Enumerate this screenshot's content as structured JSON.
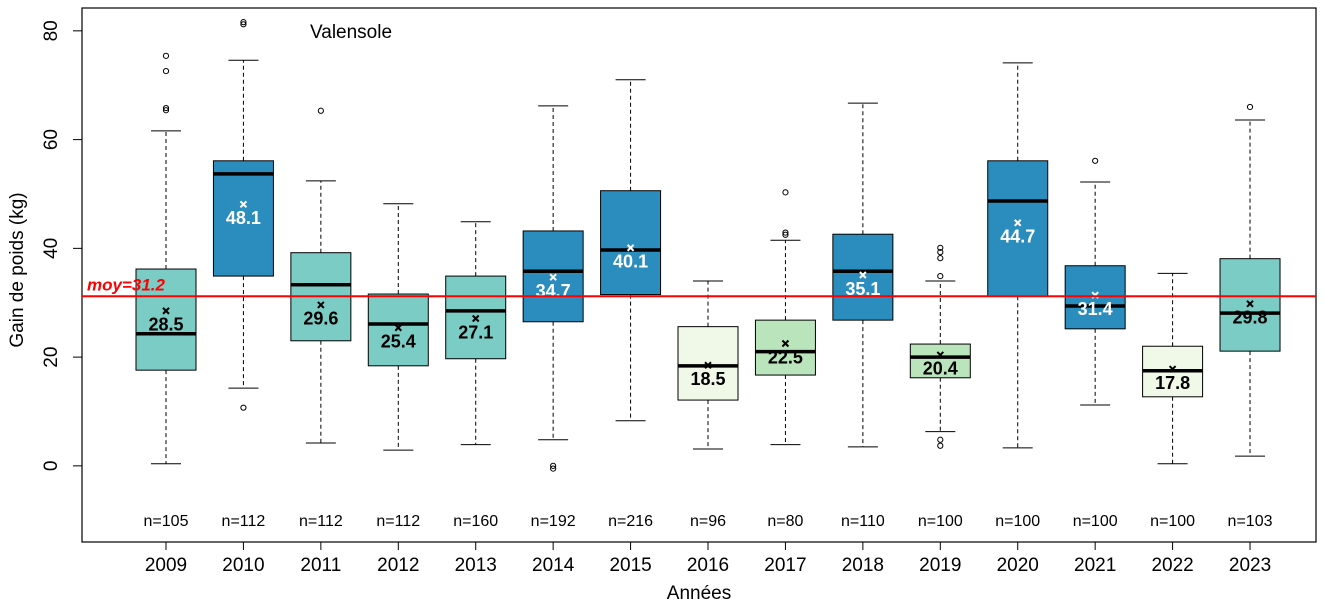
{
  "chart_data": {
    "type": "boxplot",
    "title": "Valensole",
    "xlabel": "Années",
    "ylabel": "Gain de poids (kg)",
    "ylim": [
      -14,
      84.2
    ],
    "yticks": [
      0,
      20,
      40,
      60,
      80
    ],
    "categories": [
      "2009",
      "2010",
      "2011",
      "2012",
      "2013",
      "2014",
      "2015",
      "2016",
      "2017",
      "2018",
      "2019",
      "2020",
      "2021",
      "2022",
      "2023"
    ],
    "reference_line": {
      "value": 31.2,
      "label": "moy=31.2",
      "color": "#ff0000"
    },
    "boxes": [
      {
        "whislo": 0.4,
        "q1": 17.6,
        "med": 24.3,
        "q3": 36.2,
        "whishi": 61.6,
        "mean": 28.5,
        "fliers": [
          75.4,
          72.6,
          65.8,
          65.4
        ],
        "n": "n=105",
        "color": "#7bccc4",
        "label_color": "#000000"
      },
      {
        "whislo": 14.3,
        "q1": 34.9,
        "med": 53.7,
        "q3": 56.1,
        "whishi": 74.6,
        "mean": 48.1,
        "fliers": [
          81.6,
          81.2,
          10.7
        ],
        "n": "n=112",
        "color": "#2b8cbe",
        "label_color": "#ffffff"
      },
      {
        "whislo": 4.2,
        "q1": 23.0,
        "med": 33.3,
        "q3": 39.2,
        "whishi": 52.4,
        "mean": 29.6,
        "fliers": [
          65.3
        ],
        "n": "n=112",
        "color": "#7bccc4",
        "label_color": "#000000"
      },
      {
        "whislo": 2.9,
        "q1": 18.4,
        "med": 26.1,
        "q3": 31.6,
        "whishi": 48.2,
        "mean": 25.4,
        "fliers": [],
        "n": "n=112",
        "color": "#7bccc4",
        "label_color": "#000000"
      },
      {
        "whislo": 3.9,
        "q1": 19.7,
        "med": 28.5,
        "q3": 34.9,
        "whishi": 44.9,
        "mean": 27.1,
        "fliers": [],
        "n": "n=160",
        "color": "#7bccc4",
        "label_color": "#000000"
      },
      {
        "whislo": 4.8,
        "q1": 26.5,
        "med": 35.8,
        "q3": 43.2,
        "whishi": 66.2,
        "mean": 34.7,
        "fliers": [
          0,
          -0.5
        ],
        "n": "n=192",
        "color": "#2b8cbe",
        "label_color": "#ffffff"
      },
      {
        "whislo": 8.3,
        "q1": 31.5,
        "med": 39.7,
        "q3": 50.6,
        "whishi": 71.0,
        "mean": 40.1,
        "fliers": [],
        "n": "n=216",
        "color": "#2b8cbe",
        "label_color": "#ffffff"
      },
      {
        "whislo": 3.1,
        "q1": 12.1,
        "med": 18.4,
        "q3": 25.6,
        "whishi": 34.0,
        "mean": 18.5,
        "fliers": [],
        "n": "n=96",
        "color": "#f0f9e8",
        "label_color": "#000000"
      },
      {
        "whislo": 3.9,
        "q1": 16.7,
        "med": 21.0,
        "q3": 26.8,
        "whishi": 41.5,
        "mean": 22.5,
        "fliers": [
          50.3,
          42.9,
          42.5
        ],
        "n": "n=80",
        "color": "#bae4bc",
        "label_color": "#000000"
      },
      {
        "whislo": 3.5,
        "q1": 26.8,
        "med": 35.8,
        "q3": 42.6,
        "whishi": 66.7,
        "mean": 35.1,
        "fliers": [],
        "n": "n=110",
        "color": "#2b8cbe",
        "label_color": "#ffffff"
      },
      {
        "whislo": 6.3,
        "q1": 16.2,
        "med": 20.0,
        "q3": 22.4,
        "whishi": 34.0,
        "mean": 20.4,
        "fliers": [
          40.1,
          39.3,
          38.2,
          34.9,
          4.8,
          3.7
        ],
        "n": "n=100",
        "color": "#bae4bc",
        "label_color": "#000000"
      },
      {
        "whislo": 3.3,
        "q1": 31.2,
        "med": 48.7,
        "q3": 56.1,
        "whishi": 74.1,
        "mean": 44.7,
        "fliers": [],
        "n": "n=100",
        "color": "#2b8cbe",
        "label_color": "#ffffff"
      },
      {
        "whislo": 11.2,
        "q1": 25.2,
        "med": 29.4,
        "q3": 36.8,
        "whishi": 52.2,
        "mean": 31.4,
        "fliers": [
          56.1
        ],
        "n": "n=100",
        "color": "#2b8cbe",
        "label_color": "#ffffff"
      },
      {
        "whislo": 0.4,
        "q1": 12.7,
        "med": 17.5,
        "q3": 22.0,
        "whishi": 35.4,
        "mean": 17.8,
        "fliers": [],
        "n": "n=100",
        "color": "#f0f9e8",
        "label_color": "#000000"
      },
      {
        "whislo": 1.8,
        "q1": 21.1,
        "med": 28.1,
        "q3": 38.1,
        "whishi": 63.6,
        "mean": 29.8,
        "fliers": [
          66.0
        ],
        "n": "n=103",
        "color": "#7bccc4",
        "label_color": "#000000"
      }
    ]
  }
}
